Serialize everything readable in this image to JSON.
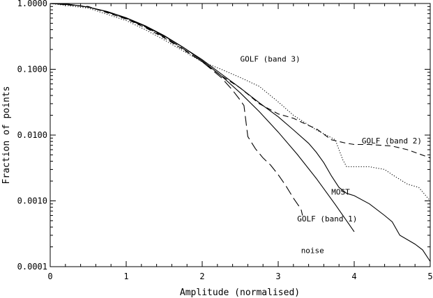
{
  "chart_data": {
    "type": "line",
    "title": "",
    "xlabel": "Amplitude (normalised)",
    "ylabel": "Fraction of points",
    "xlim": [
      0,
      5
    ],
    "ylim": [
      0.0001,
      1.0
    ],
    "yscale": "log",
    "grid": false,
    "x_ticks": [
      0,
      1,
      2,
      3,
      4,
      5
    ],
    "x_tick_labels": [
      "0",
      "1",
      "2",
      "3",
      "4",
      "5"
    ],
    "y_ticks": [
      0.0001,
      0.001,
      0.01,
      0.1,
      1.0
    ],
    "y_tick_labels": [
      "0.0001",
      "0.0010",
      "0.0100",
      "0.1000",
      "1.0000"
    ],
    "line_color": "#000000",
    "series": [
      {
        "name": "noise",
        "style": "solid",
        "label_anchor": [
          3.3,
          0.00016
        ],
        "points": [
          [
            0,
            1.0
          ],
          [
            0.25,
            0.969
          ],
          [
            0.5,
            0.882
          ],
          [
            0.75,
            0.755
          ],
          [
            1.0,
            0.607
          ],
          [
            1.25,
            0.458
          ],
          [
            1.5,
            0.325
          ],
          [
            1.75,
            0.216
          ],
          [
            2.0,
            0.135
          ],
          [
            2.25,
            0.0796
          ],
          [
            2.5,
            0.0439
          ],
          [
            2.75,
            0.0228
          ],
          [
            3.0,
            0.0111
          ],
          [
            3.25,
            0.0051
          ],
          [
            3.5,
            0.0022
          ],
          [
            3.75,
            0.00088
          ],
          [
            4.0,
            0.00034
          ]
        ]
      },
      {
        "name": "MOST",
        "style": "solid",
        "label_anchor": [
          3.7,
          0.00125
        ],
        "points": [
          [
            0,
            1.0
          ],
          [
            0.25,
            0.97
          ],
          [
            0.5,
            0.88
          ],
          [
            0.75,
            0.75
          ],
          [
            1.0,
            0.6
          ],
          [
            1.25,
            0.45
          ],
          [
            1.5,
            0.32
          ],
          [
            1.75,
            0.215
          ],
          [
            2.0,
            0.14
          ],
          [
            2.25,
            0.085
          ],
          [
            2.5,
            0.052
          ],
          [
            2.75,
            0.031
          ],
          [
            3.0,
            0.019
          ],
          [
            3.2,
            0.012
          ],
          [
            3.4,
            0.0075
          ],
          [
            3.5,
            0.0055
          ],
          [
            3.6,
            0.0038
          ],
          [
            3.7,
            0.0024
          ],
          [
            3.8,
            0.0016
          ],
          [
            3.9,
            0.0013
          ],
          [
            4.0,
            0.0012
          ],
          [
            4.2,
            0.0009
          ],
          [
            4.4,
            0.0006
          ],
          [
            4.5,
            0.00048
          ],
          [
            4.6,
            0.0003
          ],
          [
            4.8,
            0.00022
          ],
          [
            4.9,
            0.00018
          ],
          [
            5.0,
            0.00012
          ]
        ]
      },
      {
        "name": "GOLF (band 1)",
        "style": "longdash",
        "label_anchor": [
          3.25,
          0.00049
        ],
        "points": [
          [
            0,
            1.0
          ],
          [
            0.25,
            0.96
          ],
          [
            0.5,
            0.88
          ],
          [
            0.75,
            0.74
          ],
          [
            1.0,
            0.59
          ],
          [
            1.25,
            0.44
          ],
          [
            1.5,
            0.31
          ],
          [
            1.75,
            0.205
          ],
          [
            2.0,
            0.13
          ],
          [
            2.25,
            0.075
          ],
          [
            2.4,
            0.048
          ],
          [
            2.5,
            0.034
          ],
          [
            2.55,
            0.028
          ],
          [
            2.6,
            0.0095
          ],
          [
            2.7,
            0.0062
          ],
          [
            2.8,
            0.0045
          ],
          [
            2.9,
            0.0035
          ],
          [
            3.0,
            0.0025
          ],
          [
            3.1,
            0.0017
          ],
          [
            3.2,
            0.0011
          ],
          [
            3.3,
            0.00075
          ],
          [
            3.32,
            0.0006
          ]
        ]
      },
      {
        "name": "GOLF (band 2)",
        "style": "dashed",
        "label_anchor": [
          4.1,
          0.0075
        ],
        "points": [
          [
            0,
            1.0
          ],
          [
            0.5,
            0.9
          ],
          [
            1.0,
            0.58
          ],
          [
            1.25,
            0.43
          ],
          [
            1.5,
            0.3
          ],
          [
            1.75,
            0.2
          ],
          [
            2.0,
            0.13
          ],
          [
            2.25,
            0.08
          ],
          [
            2.5,
            0.052
          ],
          [
            2.75,
            0.03
          ],
          [
            3.0,
            0.021
          ],
          [
            3.2,
            0.018
          ],
          [
            3.4,
            0.014
          ],
          [
            3.5,
            0.0125
          ],
          [
            3.7,
            0.0085
          ],
          [
            3.9,
            0.0075
          ],
          [
            4.0,
            0.0072
          ],
          [
            4.2,
            0.0072
          ],
          [
            4.5,
            0.0068
          ],
          [
            4.7,
            0.006
          ],
          [
            5.0,
            0.0045
          ]
        ]
      },
      {
        "name": "GOLF (band 3)",
        "style": "dotted",
        "label_anchor": [
          2.5,
          0.13
        ],
        "points": [
          [
            0,
            1.0
          ],
          [
            0.5,
            0.85
          ],
          [
            1.0,
            0.55
          ],
          [
            1.25,
            0.4
          ],
          [
            1.5,
            0.28
          ],
          [
            1.75,
            0.19
          ],
          [
            2.0,
            0.13
          ],
          [
            2.25,
            0.1
          ],
          [
            2.5,
            0.075
          ],
          [
            2.75,
            0.055
          ],
          [
            3.0,
            0.032
          ],
          [
            3.2,
            0.02
          ],
          [
            3.5,
            0.012
          ],
          [
            3.75,
            0.0085
          ],
          [
            3.85,
            0.0042
          ],
          [
            3.9,
            0.0033
          ],
          [
            4.2,
            0.0033
          ],
          [
            4.4,
            0.003
          ],
          [
            4.5,
            0.0025
          ],
          [
            4.7,
            0.0018
          ],
          [
            4.85,
            0.0016
          ],
          [
            5.0,
            0.001
          ]
        ]
      }
    ]
  }
}
